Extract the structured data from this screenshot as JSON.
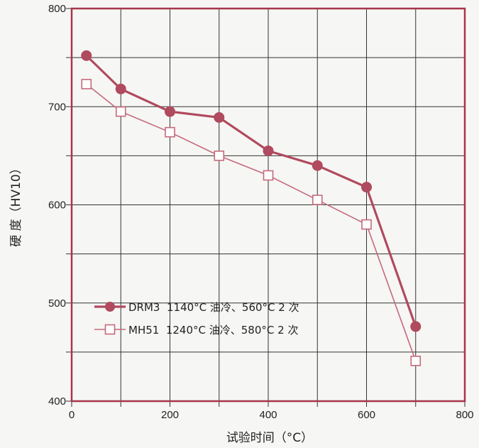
{
  "chart_data": {
    "type": "line",
    "title": "",
    "xlabel": "试验时间（°C）",
    "ylabel": "硬 度（HV10）",
    "xlim": [
      0,
      800
    ],
    "ylim": [
      400,
      800
    ],
    "x_ticks": [
      "0",
      "200",
      "400",
      "600",
      "800"
    ],
    "y_ticks": [
      "400",
      "500",
      "600",
      "700",
      "800"
    ],
    "grid": true,
    "legend_position": "lower-left",
    "series": [
      {
        "name": "DRM3  1140°C 油冷、560°C 2 次",
        "marker": "filled-circle",
        "color": "#b04a5e",
        "x": [
          30,
          100,
          200,
          300,
          400,
          500,
          600,
          700
        ],
        "y": [
          752,
          718,
          695,
          689,
          655,
          640,
          618,
          476
        ]
      },
      {
        "name": "MH51  1240°C 油冷、580°C 2 次",
        "marker": "open-square",
        "color": "#c46a7c",
        "x": [
          30,
          100,
          200,
          300,
          400,
          500,
          600,
          700
        ],
        "y": [
          723,
          695,
          674,
          650,
          630,
          605,
          580,
          441
        ]
      }
    ]
  },
  "colors": {
    "frame": "#a8344c",
    "grid": "#333333",
    "background": "#f6f6f4"
  }
}
